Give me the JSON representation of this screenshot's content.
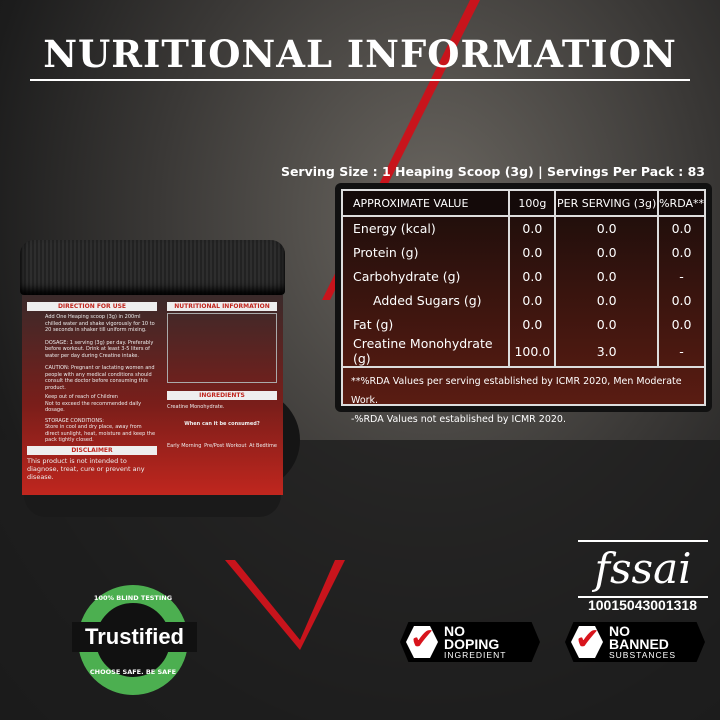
{
  "title": "NURITIONAL INFORMATION",
  "serving_line": "Serving Size : 1 Heaping Scoop (3g) | Servings Per Pack : 83",
  "table": {
    "headers": [
      "APPROXIMATE VALUE",
      "100g",
      "PER SERVING (3g)",
      "%RDA**"
    ],
    "rows": [
      [
        "Energy (kcal)",
        "0.0",
        "0.0",
        "0.0"
      ],
      [
        "Protein (g)",
        "0.0",
        "0.0",
        "0.0"
      ],
      [
        "Carbohydrate (g)",
        "0.0",
        "0.0",
        "-"
      ],
      [
        "Added Sugars (g)",
        "0.0",
        "0.0",
        "0.0"
      ],
      [
        "Fat (g)",
        "0.0",
        "0.0",
        "0.0"
      ],
      [
        "Creatine Monohydrate (g)",
        "100.0",
        "3.0",
        "-"
      ]
    ],
    "footnotes": [
      "**%RDA Values per serving established by ICMR 2020, Men Moderate Work.",
      "-%RDA Values not established by ICMR 2020."
    ]
  },
  "jar_label": {
    "direction_title": "DIRECTION FOR USE",
    "direction": "Add One Heaping scoop (3g) in 200ml chilled water and shake vigorously for 10 to 20 seconds in shaker till uniform mixing.",
    "dosage": "DOSAGE: 1 serving (3g) per day. Preferably before workout. Drink at least 3-5 liters of water per day during Creatine intake.",
    "caution": "CAUTION: Pregnant or lactating women and people with any medical conditions should consult the doctor before consuming this product.",
    "keep_out": "Keep out of reach of Children",
    "not_exceed": "Not to exceed the recommended daily dosage.",
    "storage_title": "STORAGE CONDITIONS:",
    "storage": "Store in cool and dry place, away from direct sunlight, heat, moisture and keep the pack tightly closed.",
    "disclaimer_title": "DISCLAIMER",
    "disclaimer": "This product is not intended to diagnose, treat, cure or prevent any disease.",
    "nutrition_title": "NUTRITIONAL INFORMATION",
    "ingredients_title": "INGREDIENTS",
    "ingredients": "Creatine Monohydrate.",
    "when_title": "When can it be consumed?",
    "when": [
      "Early Morning",
      "Pre/Post Workout",
      "At Bedtime"
    ]
  },
  "fssai": {
    "logo": "fssai",
    "number": "10015043001318"
  },
  "badges": [
    {
      "top": "NO",
      "main": "DOPING",
      "sub": "INGREDIENT"
    },
    {
      "top": "NO",
      "main": "BANNED",
      "sub": "SUBSTANCES"
    }
  ],
  "trustified": {
    "top": "100% BLIND TESTING",
    "name": "Trustified",
    "bottom": "CHOOSE SAFE. BE SAFE"
  },
  "colors": {
    "accent": "#d8141c",
    "table_bg": "#5a1c12",
    "badge_green": "#4caf50"
  }
}
